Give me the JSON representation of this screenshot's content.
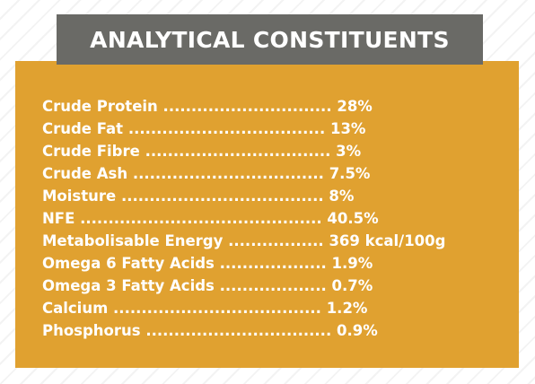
{
  "title": "ANALYTICAL CONSTITUENTS",
  "constituents": [
    {
      "name": "Crude Protein",
      "dots": "..............................",
      "value": "28%"
    },
    {
      "name": "Crude Fat",
      "dots": "...................................",
      "value": "13%"
    },
    {
      "name": "Crude Fibre",
      "dots": ".................................",
      "value": "3%"
    },
    {
      "name": "Crude Ash",
      "dots": "..................................",
      "value": "7.5%"
    },
    {
      "name": "Moisture",
      "dots": "....................................",
      "value": "8%"
    },
    {
      "name": "NFE",
      "dots": "...........................................",
      "value": "40.5%"
    },
    {
      "name": "Metabolisable Energy",
      "dots": ".................",
      "value": "369 kcal/100g"
    },
    {
      "name": "Omega 6 Fatty Acids",
      "dots": "...................",
      "value": "1.9%"
    },
    {
      "name": "Omega 3 Fatty Acids",
      "dots": "...................",
      "value": "0.7%"
    },
    {
      "name": "Calcium",
      "dots": ".....................................",
      "value": "1.2%"
    },
    {
      "name": "Phosphorus",
      "dots": ".................................",
      "value": "0.9%"
    }
  ]
}
